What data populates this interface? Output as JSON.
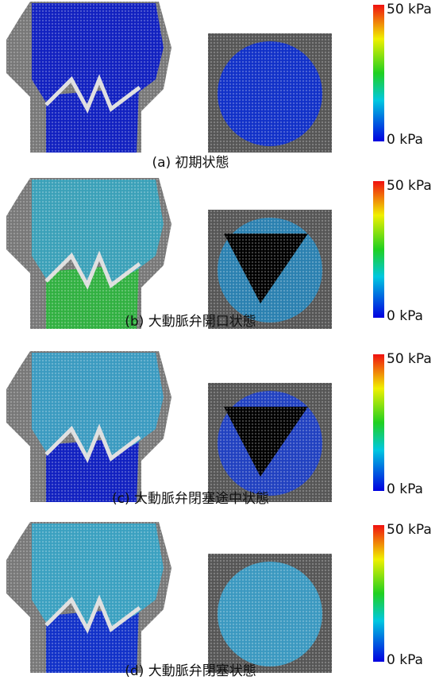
{
  "panels": [
    {
      "caption": "(a) 初期状態",
      "colorbar": {
        "max_label": "50 kPa",
        "min_label": "0 kPa"
      }
    },
    {
      "caption": "(b) 大動脈弁開口状態",
      "colorbar": {
        "max_label": "50 kPa",
        "min_label": "0 kPa"
      }
    },
    {
      "caption": "(c) 大動脈弁閉塞途中状態",
      "colorbar": {
        "max_label": "50 kPa",
        "min_label": "0 kPa"
      }
    },
    {
      "caption": "(d) 大動脈弁閉塞状態",
      "colorbar": {
        "max_label": "50 kPa",
        "min_label": "0 kPa"
      }
    }
  ]
}
